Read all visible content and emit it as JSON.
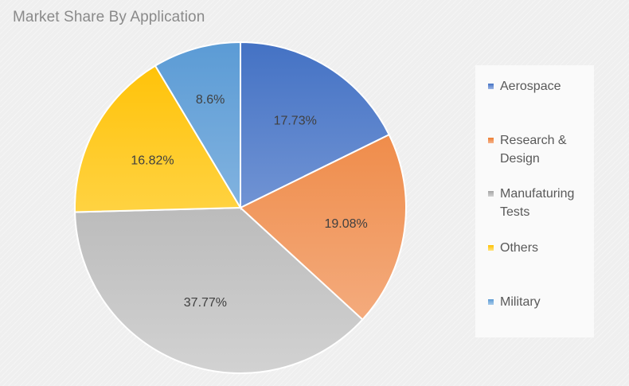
{
  "chart_data": {
    "type": "pie",
    "title": "Market Share By Application",
    "categories": [
      "Aerospace",
      "Research & Design",
      "Manufaturing Tests",
      "Others",
      "Military"
    ],
    "values": [
      17.73,
      19.08,
      37.77,
      16.82,
      8.6
    ],
    "data_labels": [
      "17.73%",
      "19.08%",
      "37.77%",
      "16.82%",
      "8.6%"
    ],
    "colors": {
      "Aerospace": [
        "#4472c4",
        "#9db5e4"
      ],
      "Research & Design": [
        "#ed7d31",
        "#f5b48c"
      ],
      "Manufaturing Tests": [
        "#a5a5a5",
        "#d2d2d2"
      ],
      "Others": [
        "#ffc000",
        "#ffe480"
      ],
      "Military": [
        "#5b9bd5",
        "#a9cbea"
      ]
    },
    "legend_position": "right",
    "start": "top, clockwise"
  }
}
